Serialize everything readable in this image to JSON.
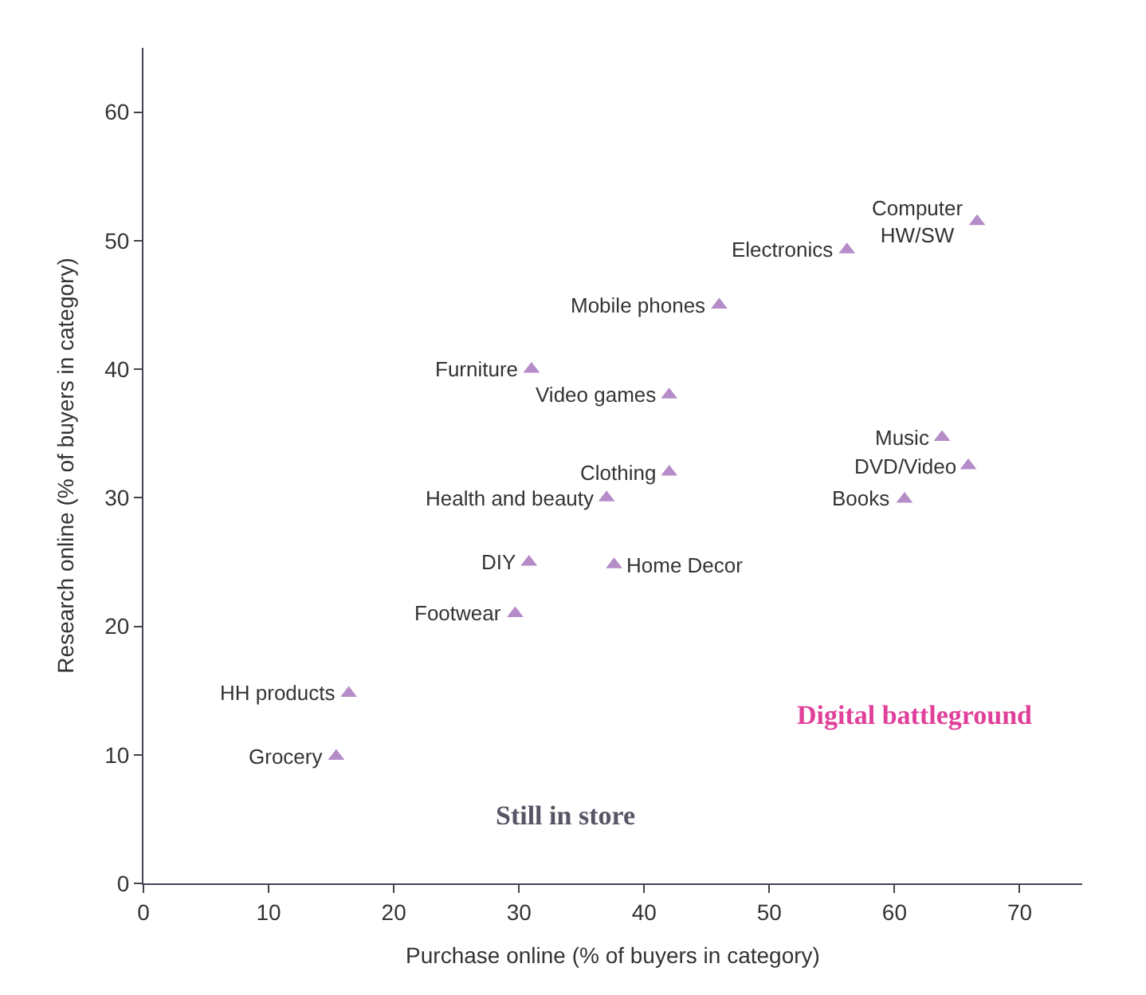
{
  "chart_data": {
    "type": "scatter",
    "xlabel": "Purchase online (% of buyers in category)",
    "ylabel": "Research online (% of buyers in category)",
    "x": [
      56.2,
      66.6,
      63.8,
      65.9,
      60.8,
      46,
      31,
      42,
      42,
      37,
      30.8,
      37.6,
      29.7,
      16.4,
      15.4
    ],
    "series": [
      {
        "color": "#b58cc8",
        "values": [
          49.3,
          51.5,
          34.7,
          32.5,
          29.9,
          45,
          40,
          38,
          32,
          30,
          25,
          24.8,
          21,
          14.8,
          9.9
        ]
      }
    ],
    "marker": "triangle",
    "xlim": [
      0,
      75
    ],
    "xticks": [
      0,
      10,
      20,
      30,
      40,
      50,
      60,
      70
    ],
    "ylim": [
      0,
      65
    ],
    "yticks": [
      0,
      10,
      20,
      30,
      40,
      50,
      60
    ],
    "annotations": [
      {
        "text": "Electronics",
        "x": 56.2,
        "y": 49.3
      },
      {
        "text": "Computer\nHW/SW",
        "x": 66.6,
        "y": 51.5
      },
      {
        "text": "Music",
        "x": 63.8,
        "y": 34.7
      },
      {
        "text": "DVD/Video",
        "x": 65.9,
        "y": 32.5
      },
      {
        "text": "Books",
        "x": 60.8,
        "y": 29.9
      },
      {
        "text": "Mobile phones",
        "x": 46,
        "y": 45
      },
      {
        "text": "Furniture",
        "x": 31,
        "y": 40
      },
      {
        "text": "Video games",
        "x": 42,
        "y": 38
      },
      {
        "text": "Clothing",
        "x": 42,
        "y": 32
      },
      {
        "text": "Health and beauty",
        "x": 37,
        "y": 30
      },
      {
        "text": "DIY",
        "x": 30.8,
        "y": 25
      },
      {
        "text": "Home Decor",
        "x": 37.6,
        "y": 24.8
      },
      {
        "text": "Footwear",
        "x": 29.7,
        "y": 21
      },
      {
        "text": "HH products",
        "x": 16.4,
        "y": 14.8
      },
      {
        "text": "Grocery",
        "x": 15.4,
        "y": 9.9
      },
      "Digital battleground",
      "Still in store"
    ]
  }
}
